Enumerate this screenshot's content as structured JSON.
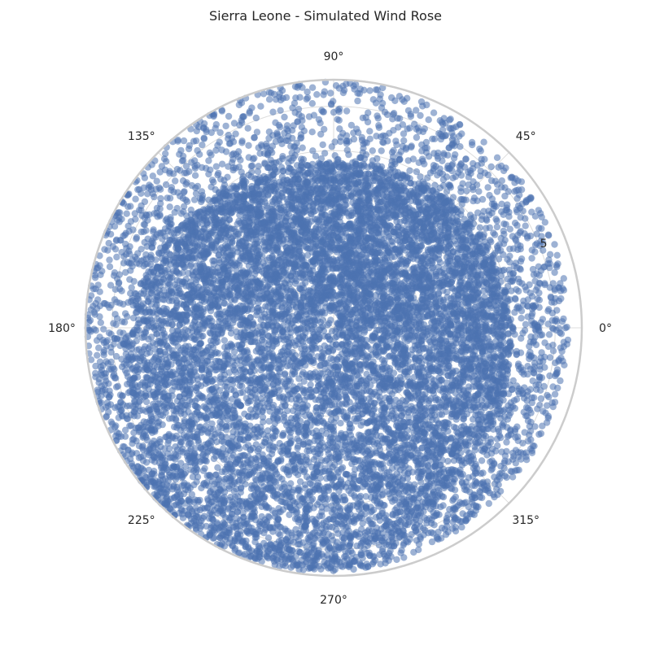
{
  "chart_data": {
    "type": "scatter",
    "projection": "polar",
    "title": "Sierra Leone - Simulated Wind Rose",
    "angle_ticks": [
      "0°",
      "45°",
      "90°",
      "135°",
      "180°",
      "225°",
      "270°",
      "315°"
    ],
    "radial_ticks": [
      "5"
    ],
    "rlim": [
      0,
      5.6
    ],
    "grid": true,
    "marker_color": "#4c72b0",
    "marker_alpha": 0.55,
    "series": [
      {
        "point_count": 12000,
        "description_of_distribution": "dense scatter with speed largest toward 180°–300°, sparser toward 0°–45°",
        "radius_by_direction_deg": [
          {
            "direction": 0,
            "r_typical": 4.0,
            "r_max": 5.3
          },
          {
            "direction": 45,
            "r_typical": 3.9,
            "r_max": 5.4
          },
          {
            "direction": 90,
            "r_typical": 3.7,
            "r_max": 5.6
          },
          {
            "direction": 135,
            "r_typical": 4.0,
            "r_max": 5.6
          },
          {
            "direction": 180,
            "r_typical": 4.6,
            "r_max": 5.6
          },
          {
            "direction": 225,
            "r_typical": 5.2,
            "r_max": 5.6
          },
          {
            "direction": 270,
            "r_typical": 5.1,
            "r_max": 5.5
          },
          {
            "direction": 315,
            "r_typical": 4.3,
            "r_max": 5.3
          }
        ]
      }
    ]
  }
}
